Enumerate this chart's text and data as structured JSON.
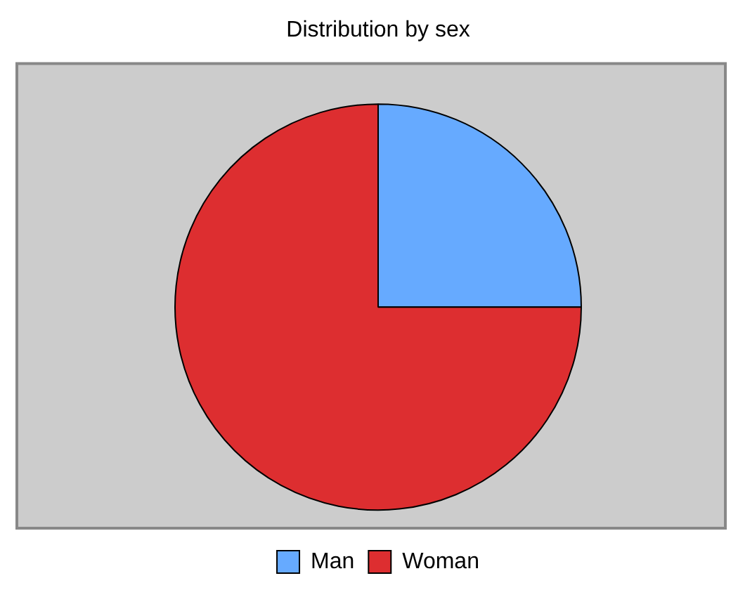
{
  "chart_data": {
    "type": "pie",
    "title": "Distribution by sex",
    "categories": [
      "Man",
      "Woman"
    ],
    "values": [
      25,
      75
    ],
    "colors": [
      "#66aaff",
      "#dd2e30"
    ],
    "legend": "bottom"
  }
}
